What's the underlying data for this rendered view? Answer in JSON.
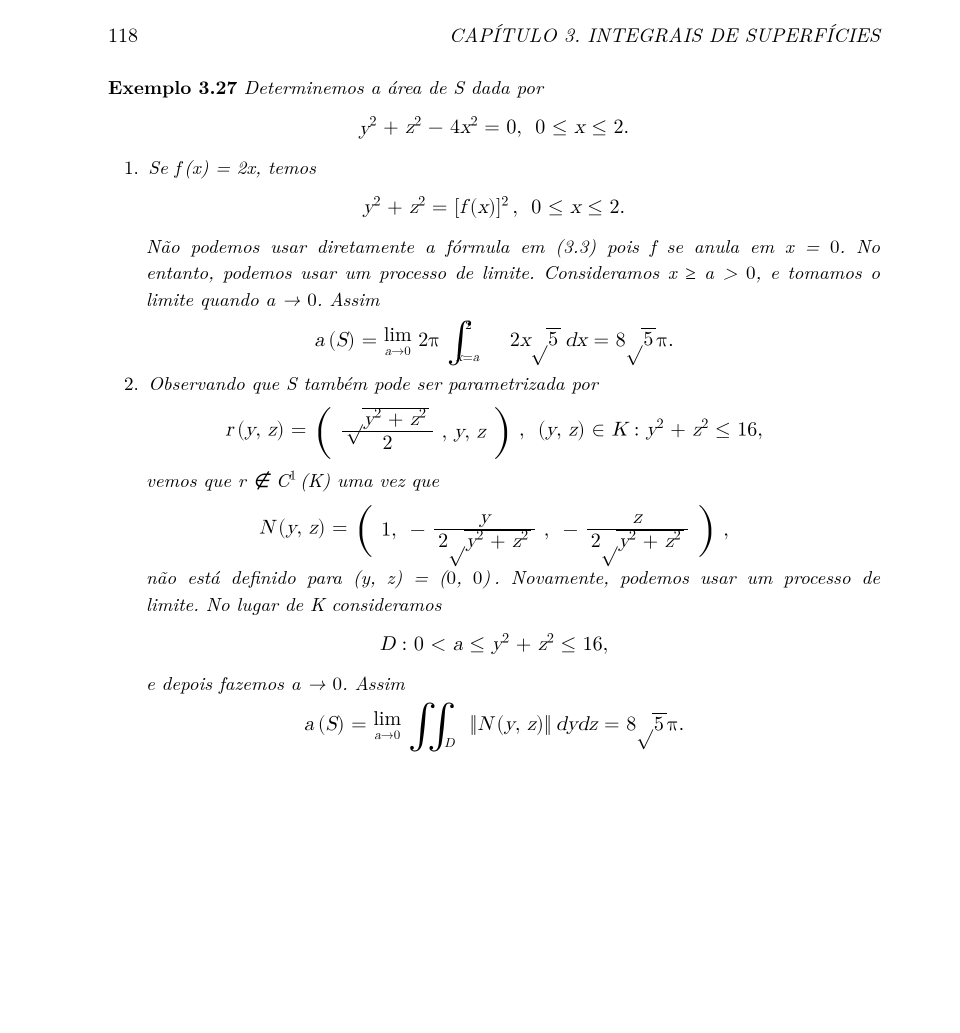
{
  "header": {
    "page_number": "118",
    "chapter_title": "CAPÍTULO 3.  INTEGRAIS DE SUPERFÍCIES"
  },
  "example": {
    "label": "Exemplo 3.27",
    "text": "Determinemos a área de S dada por"
  },
  "eq1": "y² + z² − 4x² = 0,  0 ≤ x ≤ 2.",
  "item1": {
    "lead": "1. Se f (x) = 2x, temos",
    "eq": "y² + z² = [f (x)]² ,  0 ≤ x ≤ 2.",
    "p1": "Não podemos usar diretamente a fórmula em (3.3) pois f se anula em x = 0. No entanto, podemos usar um processo de limite. Consideramos x ≥ a > 0, e tomamos o limite quando a → 0. Assim"
  },
  "eq_limit1": {
    "lim_under": "a→0",
    "int_top": "2",
    "int_bot": "x=a",
    "rhs": "2x√5 dx = 8√5π."
  },
  "item2": {
    "lead": "2. Observando que S também pode ser parametrizada por",
    "p_after_r": "vemos que r ∉ C¹ (K) uma vez que",
    "p_after_N": "não está definido para (y, z) = (0, 0) . Novamente, podemos usar um processo de limite. No lugar de K consideramos",
    "eqD": "D : 0 < a ≤ y² + z² ≤ 16,",
    "p_final": "e depois fazemos a → 0. Assim"
  },
  "eq_r": {
    "domain": ",  (y, z) ∈ K : y² + z² ≤ 16,"
  },
  "eq_final": {
    "lim_under": "a→0",
    "dblint_sub": "D",
    "rhs": " dydz = 8√5π."
  }
}
